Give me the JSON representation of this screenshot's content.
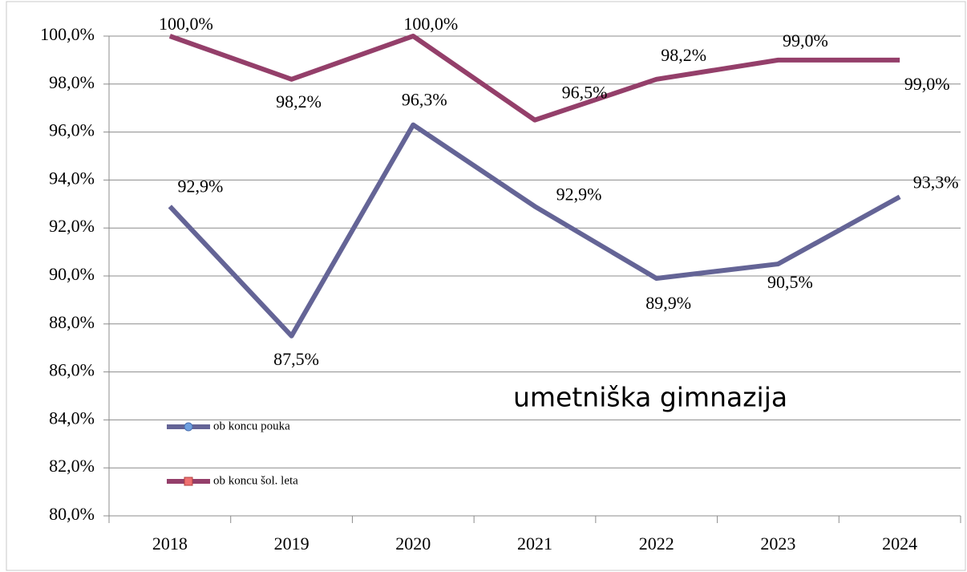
{
  "chart_data": {
    "type": "line",
    "annotation": "umetniška gimnazija",
    "categories": [
      "2018",
      "2019",
      "2020",
      "2021",
      "2022",
      "2023",
      "2024"
    ],
    "series": [
      {
        "name": "ob koncu pouka",
        "color": "#646496",
        "marker": "circle",
        "values": [
          92.9,
          87.5,
          96.3,
          92.9,
          89.9,
          90.5,
          93.3
        ],
        "value_labels": [
          "92,9%",
          "87,5%",
          "96,3%",
          "92,9%",
          "89,9%",
          "90,5%",
          "93,3%"
        ]
      },
      {
        "name": "ob koncu šol. leta",
        "color": "#943f6a",
        "marker": "square",
        "values": [
          100.0,
          98.2,
          100.0,
          96.5,
          98.2,
          99.0,
          99.0
        ],
        "value_labels": [
          "100,0%",
          "98,2%",
          "100,0%",
          "96,5%",
          "98,2%",
          "99,0%",
          "99,0%"
        ]
      }
    ],
    "ylim": [
      80,
      100
    ],
    "yticks": [
      {
        "value": 80,
        "label": "80,0%"
      },
      {
        "value": 82,
        "label": "82,0%"
      },
      {
        "value": 84,
        "label": "84,0%"
      },
      {
        "value": 86,
        "label": "86,0%"
      },
      {
        "value": 88,
        "label": "88,0%"
      },
      {
        "value": 90,
        "label": "90,0%"
      },
      {
        "value": 92,
        "label": "92,0%"
      },
      {
        "value": 94,
        "label": "94,0%"
      },
      {
        "value": 96,
        "label": "96,0%"
      },
      {
        "value": 98,
        "label": "98,0%"
      },
      {
        "value": 100,
        "label": "100,0%"
      }
    ],
    "grid": true,
    "legend": "lower left"
  }
}
